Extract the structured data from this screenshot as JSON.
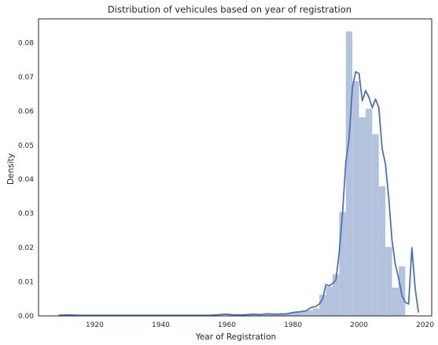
{
  "chart_data": {
    "type": "histogram",
    "title": "Distribution of vehicules based on year of registration",
    "xlabel": "Year of Registration",
    "ylabel": "Density",
    "xlim": [
      1903,
      2022
    ],
    "ylim": [
      0,
      0.087
    ],
    "x_ticks": [
      1920,
      1940,
      1960,
      1980,
      2000,
      2020
    ],
    "y_ticks": [
      0.0,
      0.01,
      0.02,
      0.03,
      0.04,
      0.05,
      0.06,
      0.07,
      0.08
    ],
    "x_tick_labels": [
      "1920",
      "1940",
      "1960",
      "1980",
      "2000",
      "2020"
    ],
    "y_tick_labels": [
      "0.00",
      "0.01",
      "0.02",
      "0.03",
      "0.04",
      "0.05",
      "0.06",
      "0.07",
      "0.08"
    ],
    "grid": false,
    "colors": {
      "bars": "#b3c3de",
      "kde": "#4c72b0",
      "frame": "#262626"
    },
    "histogram": {
      "bin_edges": [
        1910,
        1912,
        1914,
        1916,
        1918,
        1920,
        1922,
        1924,
        1926,
        1928,
        1930,
        1932,
        1934,
        1936,
        1938,
        1940,
        1942,
        1944,
        1946,
        1948,
        1950,
        1952,
        1954,
        1956,
        1958,
        1960,
        1962,
        1964,
        1966,
        1968,
        1970,
        1972,
        1974,
        1976,
        1978,
        1980,
        1982,
        1984,
        1986,
        1988,
        1990,
        1992,
        1994,
        1996,
        1998,
        2000,
        2002,
        2004,
        2006,
        2008,
        2010,
        2012,
        2014,
        2016
      ],
      "density": [
        0.0002,
        0.0001,
        0.0001,
        0.0001,
        0.0001,
        0.0001,
        0.0001,
        0.0001,
        0.0001,
        0.0001,
        0.0001,
        0.0001,
        0.0001,
        0.0001,
        0.0001,
        0.0001,
        0.0001,
        0.0001,
        0.0001,
        0.0001,
        0.0001,
        0.0001,
        0.0001,
        0.0001,
        0.0001,
        0.0002,
        0.0002,
        0.0003,
        0.0004,
        0.0005,
        0.0006,
        0.0006,
        0.0006,
        0.0008,
        0.0009,
        0.0012,
        0.0014,
        0.0016,
        0.0022,
        0.0062,
        0.0085,
        0.0122,
        0.0305,
        0.0833,
        0.0688,
        0.0582,
        0.0607,
        0.0532,
        0.038,
        0.0202,
        0.0083,
        0.0145,
        0.0002
      ]
    },
    "kde": {
      "x": [
        1909,
        1912,
        1915,
        1920,
        1930,
        1940,
        1950,
        1955,
        1960,
        1962,
        1965,
        1968,
        1970,
        1972,
        1975,
        1978,
        1980,
        1982,
        1984,
        1985,
        1986,
        1987,
        1988,
        1989,
        1990,
        1991,
        1992,
        1993,
        1994,
        1995,
        1996,
        1997,
        1998,
        1999,
        2000,
        2001,
        2002,
        2003,
        2004,
        2005,
        2006,
        2007,
        2008,
        2009,
        2010,
        2011,
        2012,
        2013,
        2014,
        2015,
        2016,
        2017,
        2018
      ],
      "y": [
        0.0002,
        0.0003,
        0.0002,
        0.0002,
        0.0002,
        0.0002,
        0.0002,
        0.0002,
        0.0005,
        0.0003,
        0.0003,
        0.0005,
        0.0004,
        0.0006,
        0.0005,
        0.0006,
        0.001,
        0.0012,
        0.0015,
        0.0022,
        0.0026,
        0.0028,
        0.0035,
        0.005,
        0.0092,
        0.0088,
        0.0095,
        0.0105,
        0.0185,
        0.03,
        0.045,
        0.052,
        0.067,
        0.0715,
        0.071,
        0.063,
        0.066,
        0.064,
        0.061,
        0.0635,
        0.061,
        0.049,
        0.0445,
        0.0345,
        0.022,
        0.015,
        0.011,
        0.006,
        0.004,
        0.0035,
        0.02,
        0.008,
        0.001
      ]
    }
  }
}
